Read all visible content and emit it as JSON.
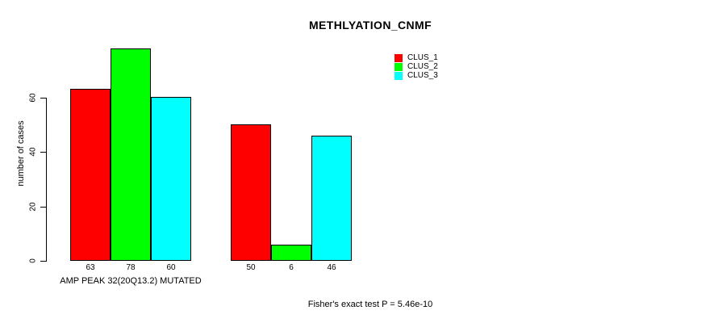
{
  "title": "METHLYATION_CNMF",
  "ylabel": "number of cases",
  "group_label": "AMP PEAK 32(20Q13.2) MUTATED",
  "footer": "Fisher's exact test P = 5.46e-10",
  "colors": {
    "clus_1": "#FF0000",
    "clus_2": "#00FF00",
    "clus_3": "#00FFFF",
    "axis": "#000000",
    "background": "#FFFFFF"
  },
  "chart_data": {
    "type": "bar",
    "title": "METHLYATION_CNMF",
    "xlabel": "AMP PEAK 32(20Q13.2) MUTATED",
    "ylabel": "number of cases",
    "yticks": [
      0,
      20,
      40,
      60
    ],
    "ylim": [
      0,
      78
    ],
    "grid": false,
    "legend_position": "top-right",
    "series": [
      {
        "name": "CLUS_1",
        "color": "#FF0000"
      },
      {
        "name": "CLUS_2",
        "color": "#00FF00"
      },
      {
        "name": "CLUS_3",
        "color": "#00FFFF"
      }
    ],
    "groups": [
      {
        "label": "AMP PEAK 32(20Q13.2) MUTATED",
        "values": [
          63,
          78,
          60
        ]
      },
      {
        "label": "",
        "values": [
          50,
          6,
          46
        ]
      }
    ],
    "annotation": "Fisher's exact test P = 5.46e-10"
  }
}
